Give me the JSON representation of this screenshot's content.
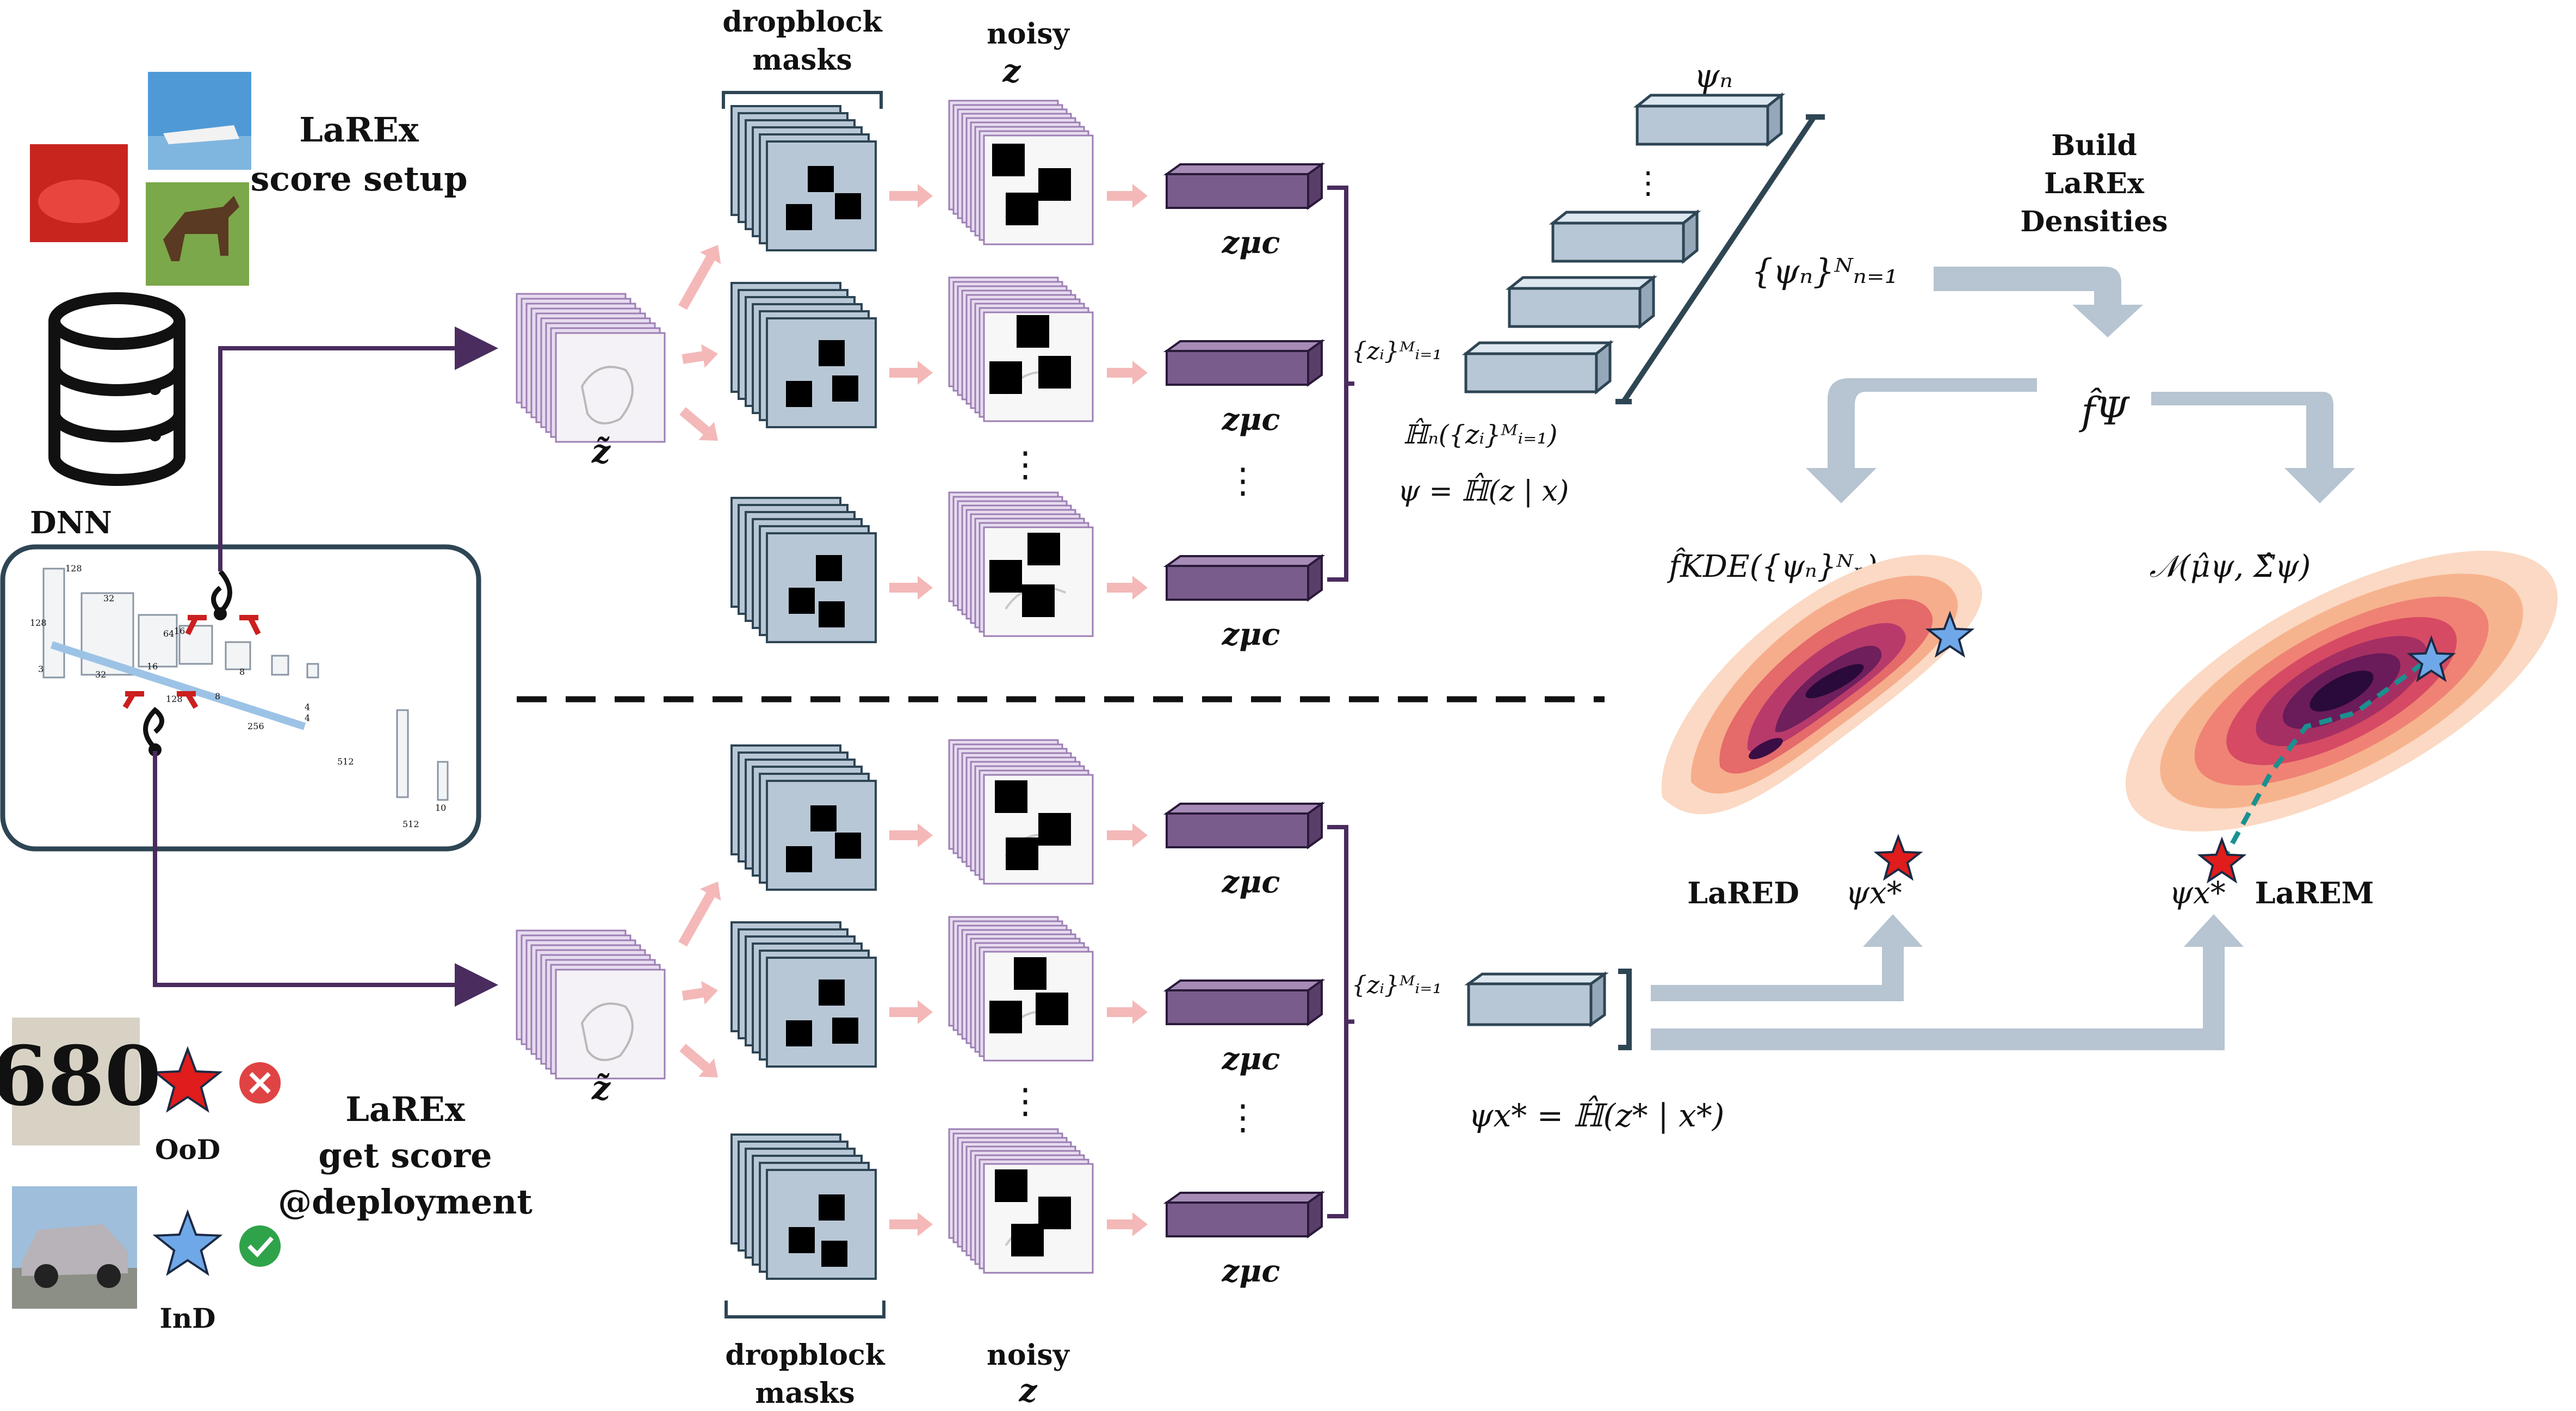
{
  "setup": {
    "title_line1": "LaREx",
    "title_line2": "score setup"
  },
  "deployment": {
    "title_line1": "LaREx",
    "title_line2": "get score",
    "title_line3": "@deployment"
  },
  "dnn": {
    "label": "DNN",
    "dims": [
      "128",
      "128",
      "3",
      "32",
      "32",
      "64",
      "16",
      "16",
      "128",
      "8",
      "8",
      "256",
      "4",
      "4",
      "512",
      "512",
      "10"
    ]
  },
  "dropblock_label": {
    "line1": "dropblock",
    "line2": "masks"
  },
  "noisy_label": {
    "line1": "noisy",
    "line2": "z"
  },
  "vdots": "⋮",
  "legend": {
    "ood_label": "OoD",
    "ind_label": "InD",
    "ood_sample_text": "680"
  },
  "build": {
    "line1": "Build",
    "line2": "LaREx",
    "line3": "Densities"
  },
  "models": {
    "lared_label": "LaRED",
    "larem_label": "LaREM"
  },
  "math": {
    "z_tilde": "z̃",
    "z_mu_c": "zμc",
    "z_set": "{zᵢ}ᴹᵢ₌₁",
    "entropy_set": "ℍ̂ₙ({zᵢ}ᴹᵢ₌₁)",
    "psi_def": "ψ = ℍ̂(z | x)",
    "psi_n": "ψₙ",
    "psi_set": "{ψₙ}ᴺₙ₌₁",
    "f_psi": "f̂Ψ",
    "f_kde": "f̂KDE({ψₙ}ᴺₙ)",
    "gauss": "𝒩(μ̂ψ, Σ̂ψ)",
    "psi_star": "ψx*",
    "psi_star_def": "ψx* = ℍ̂(z* | x*)"
  },
  "colors": {
    "arrow_dark": "#4a2c5e",
    "arrow_pink": "#f4b8b8",
    "arrow_grey": "#b7c4d1",
    "mask_fill": "#b8c7d6",
    "feature_fill": "#7a5c8c",
    "box_border": "#2e4554",
    "ood_star": "#e01c1c",
    "ind_star": "#6fa8e8",
    "dashed_divider": "#111111",
    "teal_path": "#1a9090"
  }
}
